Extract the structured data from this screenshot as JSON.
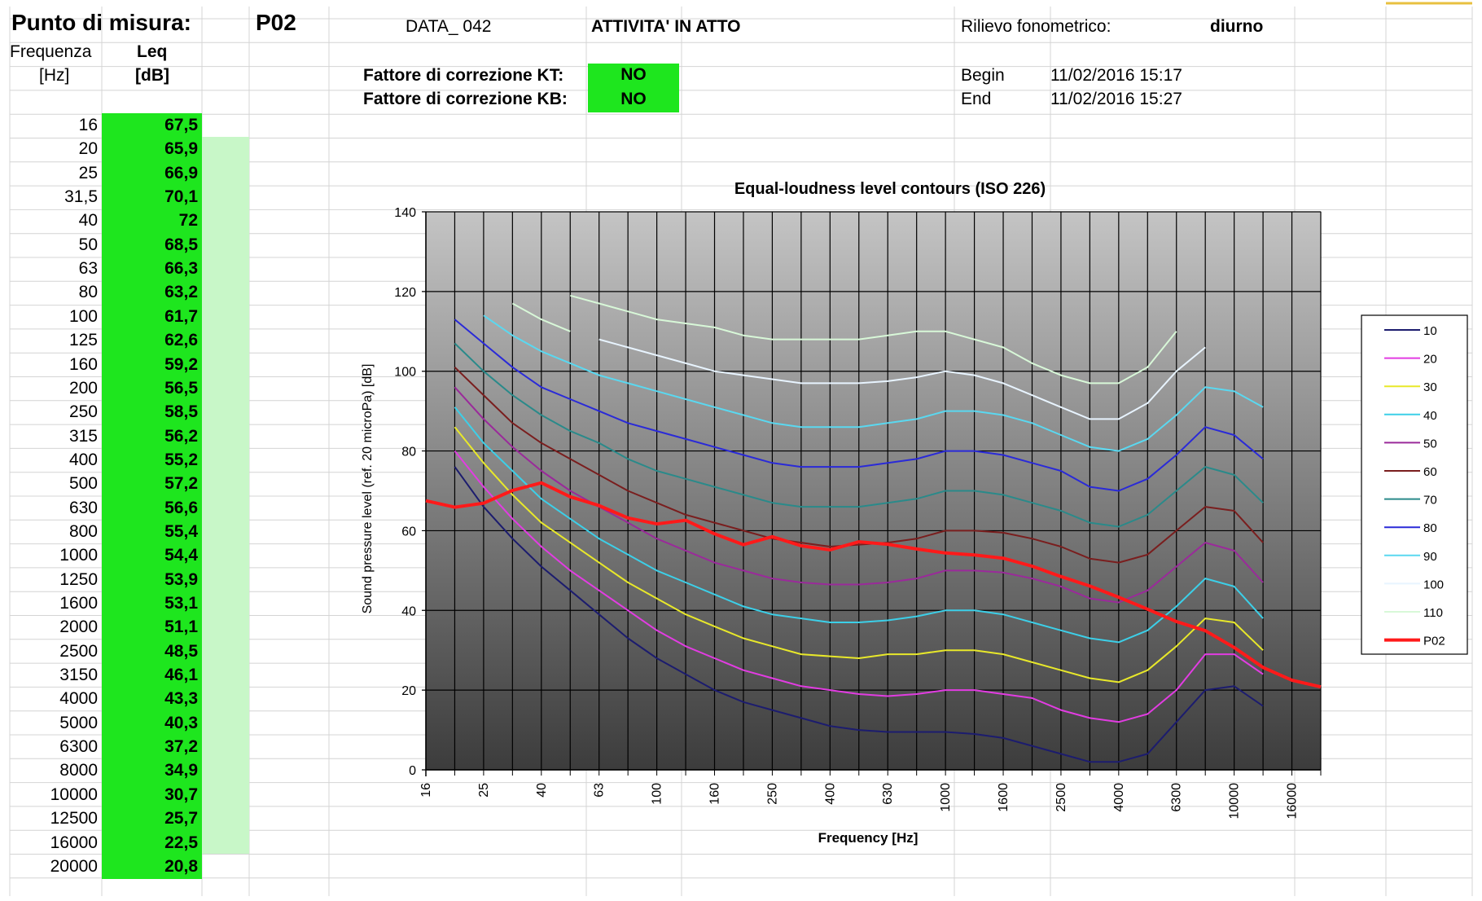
{
  "sheet": {
    "title": "Punto di misura:",
    "point": "P02",
    "data_code": "DATA_ 042",
    "activity": "ATTIVITA' IN ATTO",
    "survey_label": "Rilievo fonometrico:",
    "survey_value": "diurno",
    "freq_header": "Frequenza",
    "freq_unit": "[Hz]",
    "leq_header": "Leq",
    "leq_unit": "[dB]",
    "kt_label": "Fattore di correzione KT:",
    "kt_value": "NO",
    "kb_label": "Fattore di correzione KB:",
    "kb_value": "NO",
    "begin_label": "Begin",
    "begin_value": "11/02/2016 15:17",
    "end_label": "End",
    "end_value": "11/02/2016 15:27",
    "rows": [
      {
        "f": "16",
        "l": "67,5"
      },
      {
        "f": "20",
        "l": "65,9"
      },
      {
        "f": "25",
        "l": "66,9"
      },
      {
        "f": "31,5",
        "l": "70,1"
      },
      {
        "f": "40",
        "l": "72"
      },
      {
        "f": "50",
        "l": "68,5"
      },
      {
        "f": "63",
        "l": "66,3"
      },
      {
        "f": "80",
        "l": "63,2"
      },
      {
        "f": "100",
        "l": "61,7"
      },
      {
        "f": "125",
        "l": "62,6"
      },
      {
        "f": "160",
        "l": "59,2"
      },
      {
        "f": "200",
        "l": "56,5"
      },
      {
        "f": "250",
        "l": "58,5"
      },
      {
        "f": "315",
        "l": "56,2"
      },
      {
        "f": "400",
        "l": "55,2"
      },
      {
        "f": "500",
        "l": "57,2"
      },
      {
        "f": "630",
        "l": "56,6"
      },
      {
        "f": "800",
        "l": "55,4"
      },
      {
        "f": "1000",
        "l": "54,4"
      },
      {
        "f": "1250",
        "l": "53,9"
      },
      {
        "f": "1600",
        "l": "53,1"
      },
      {
        "f": "2000",
        "l": "51,1"
      },
      {
        "f": "2500",
        "l": "48,5"
      },
      {
        "f": "3150",
        "l": "46,1"
      },
      {
        "f": "4000",
        "l": "43,3"
      },
      {
        "f": "5000",
        "l": "40,3"
      },
      {
        "f": "6300",
        "l": "37,2"
      },
      {
        "f": "8000",
        "l": "34,9"
      },
      {
        "f": "10000",
        "l": "30,7"
      },
      {
        "f": "12500",
        "l": "25,7"
      },
      {
        "f": "16000",
        "l": "22,5"
      },
      {
        "f": "20000",
        "l": "20,8"
      }
    ],
    "colors": {
      "badge": "#1ee61e",
      "light": "#c8f7c8"
    }
  },
  "chart_data": {
    "type": "line",
    "title": "Equal-loudness level contours (ISO 226)",
    "xlabel": "Frequency [Hz]",
    "ylabel": "Sound pressure level (ref. 20 microPa) [dB]",
    "ylim": [
      0,
      140
    ],
    "yticks": [
      0,
      20,
      40,
      60,
      80,
      100,
      120,
      140
    ],
    "x_categories": [
      "16",
      "20",
      "25",
      "31.5",
      "40",
      "50",
      "63",
      "80",
      "100",
      "125",
      "160",
      "200",
      "250",
      "315",
      "400",
      "500",
      "630",
      "800",
      "1000",
      "1250",
      "1600",
      "2000",
      "2500",
      "3150",
      "4000",
      "5000",
      "6300",
      "8000",
      "10000",
      "12500",
      "16000",
      "20000"
    ],
    "x_tick_labels": [
      "16",
      "",
      "25",
      "",
      "40",
      "",
      "63",
      "",
      "100",
      "",
      "160",
      "",
      "250",
      "",
      "400",
      "",
      "630",
      "",
      "1000",
      "",
      "1600",
      "",
      "2500",
      "",
      "4000",
      "",
      "6300",
      "",
      "10000",
      "",
      "16000",
      ""
    ],
    "grid": true,
    "legend_position": "right",
    "series": [
      {
        "name": "10",
        "color": "#1c1c6e",
        "values": [
          null,
          76,
          66,
          58,
          51,
          45,
          39,
          33,
          28,
          24,
          20,
          17,
          15,
          13,
          11,
          10,
          9.5,
          9.5,
          9.5,
          9,
          8,
          6,
          4,
          2,
          2,
          4,
          12,
          20,
          21,
          16,
          null,
          null
        ]
      },
      {
        "name": "20",
        "color": "#e23ce2",
        "values": [
          null,
          80,
          71,
          63,
          56,
          50,
          45,
          40,
          35,
          31,
          28,
          25,
          23,
          21,
          20,
          19,
          18.5,
          19,
          20,
          20,
          19,
          18,
          15,
          13,
          12,
          14,
          20,
          29,
          29,
          24,
          null,
          null
        ]
      },
      {
        "name": "30",
        "color": "#e8e82a",
        "values": [
          null,
          86,
          77,
          69,
          62,
          57,
          52,
          47,
          43,
          39,
          36,
          33,
          31,
          29,
          28.5,
          28,
          29,
          29,
          30,
          30,
          29,
          27,
          25,
          23,
          22,
          25,
          31,
          38,
          37,
          30,
          null,
          null
        ]
      },
      {
        "name": "40",
        "color": "#3ccfe8",
        "values": [
          null,
          91,
          82,
          75,
          68,
          63,
          58,
          54,
          50,
          47,
          44,
          41,
          39,
          38,
          37,
          37,
          37.5,
          38.5,
          40,
          40,
          39,
          37,
          35,
          33,
          32,
          35,
          41,
          48,
          46,
          38,
          null,
          null
        ]
      },
      {
        "name": "50",
        "color": "#9a2a9a",
        "values": [
          null,
          96,
          88,
          81,
          75,
          70,
          66,
          62,
          58,
          55,
          52,
          50,
          48,
          47,
          46.5,
          46.5,
          47,
          48,
          50,
          50,
          49.5,
          48,
          46,
          43,
          42,
          45,
          51,
          57,
          55,
          47,
          null,
          null
        ]
      },
      {
        "name": "60",
        "color": "#7a1e1e",
        "values": [
          null,
          101,
          94,
          87,
          82,
          78,
          74,
          70,
          67,
          64,
          62,
          60,
          58,
          57,
          56,
          56.5,
          57,
          58,
          60,
          60,
          59.5,
          58,
          56,
          53,
          52,
          54,
          60,
          66,
          65,
          57,
          null,
          null
        ]
      },
      {
        "name": "70",
        "color": "#2a8a8a",
        "values": [
          null,
          107,
          100,
          94,
          89,
          85,
          82,
          78,
          75,
          73,
          71,
          69,
          67,
          66,
          66,
          66,
          67,
          68,
          70,
          70,
          69,
          67,
          65,
          62,
          61,
          64,
          70,
          76,
          74,
          67,
          null,
          null
        ]
      },
      {
        "name": "80",
        "color": "#2a2ad8",
        "values": [
          null,
          113,
          107,
          101,
          96,
          93,
          90,
          87,
          85,
          83,
          81,
          79,
          77,
          76,
          76,
          76,
          77,
          78,
          80,
          80,
          79,
          77,
          75,
          71,
          70,
          73,
          79,
          86,
          84,
          78,
          null,
          null
        ]
      },
      {
        "name": "90",
        "color": "#5ad8f0",
        "values": [
          null,
          null,
          114,
          109,
          105,
          102,
          99,
          97,
          95,
          93,
          91,
          89,
          87,
          86,
          86,
          86,
          87,
          88,
          90,
          90,
          89,
          87,
          84,
          81,
          80,
          83,
          89,
          96,
          95,
          91,
          null,
          null
        ]
      },
      {
        "name": "100",
        "color": "#e8f4ff",
        "values": [
          null,
          null,
          null,
          null,
          null,
          null,
          108,
          106,
          104,
          102,
          100,
          99,
          98,
          97,
          97,
          97,
          97.5,
          98.5,
          100,
          99,
          97,
          94,
          91,
          88,
          88,
          92,
          100,
          106,
          null,
          null,
          null,
          null
        ]
      },
      {
        "name": "110",
        "color": "#d8f8d8",
        "values": [
          null,
          null,
          null,
          117,
          113,
          110,
          null,
          null,
          null,
          null,
          null,
          null,
          null,
          null,
          null,
          null,
          null,
          null,
          null,
          null,
          null,
          null,
          null,
          null,
          null,
          null,
          null,
          null,
          null,
          null,
          null,
          null
        ]
      },
      {
        "name": "110",
        "color": "#d8f8d8",
        "values": [
          null,
          null,
          null,
          null,
          null,
          119,
          117,
          115,
          113,
          112,
          111,
          109,
          108,
          108,
          108,
          108,
          109,
          110,
          110,
          108,
          106,
          102,
          99,
          97,
          97,
          101,
          110,
          null,
          null,
          null,
          null,
          null
        ]
      },
      {
        "name": "P02",
        "color": "#ff1a1a",
        "values": [
          67.5,
          65.9,
          66.9,
          70.1,
          72,
          68.5,
          66.3,
          63.2,
          61.7,
          62.6,
          59.2,
          56.5,
          58.5,
          56.2,
          55.2,
          57.2,
          56.6,
          55.4,
          54.4,
          53.9,
          53.1,
          51.1,
          48.5,
          46.1,
          43.3,
          40.3,
          37.2,
          34.9,
          30.7,
          25.7,
          22.5,
          20.8
        ]
      }
    ],
    "legend_entries": [
      "10",
      "20",
      "30",
      "40",
      "50",
      "60",
      "70",
      "80",
      "90",
      "100",
      "110",
      "P02"
    ]
  }
}
